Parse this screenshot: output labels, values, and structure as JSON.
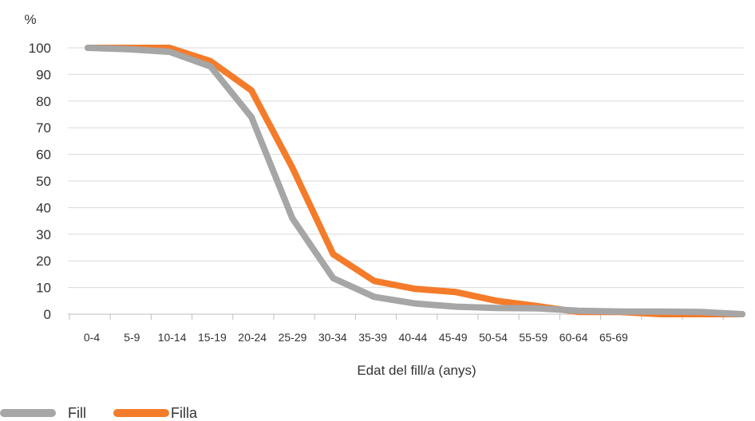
{
  "chart_data": {
    "type": "line",
    "ylabel": "%",
    "xlabel": "Edat del fill/a (anys)",
    "ylim": [
      0,
      100
    ],
    "yticks": [
      0,
      10,
      20,
      30,
      40,
      50,
      60,
      70,
      80,
      90,
      100
    ],
    "categories": [
      "0-4",
      "5-9",
      "10-14",
      "15-19",
      "20-24",
      "25-29",
      "30-34",
      "35-39",
      "40-44",
      "45-49",
      "50-54",
      "55-59",
      "60-64",
      "65-69"
    ],
    "x": [
      0,
      2,
      4,
      6,
      8,
      10,
      12,
      14,
      16,
      18,
      20,
      22,
      24,
      26,
      28,
      30,
      32
    ],
    "series": [
      {
        "name": "Fill",
        "color": "#a6a6a6",
        "values": [
          100,
          99.5,
          98.5,
          93,
          74,
          36,
          13.5,
          6.5,
          4,
          2.8,
          2.3,
          2.2,
          1.3,
          1,
          1,
          0.8,
          0
        ]
      },
      {
        "name": "Filla",
        "color": "#f47b2a",
        "values": [
          100,
          100,
          100,
          95,
          84,
          55,
          22.5,
          12.5,
          9.5,
          8.3,
          5,
          3,
          0.8,
          0.8,
          0,
          0,
          0
        ]
      }
    ],
    "grid": true,
    "legend": "bottom-left"
  }
}
